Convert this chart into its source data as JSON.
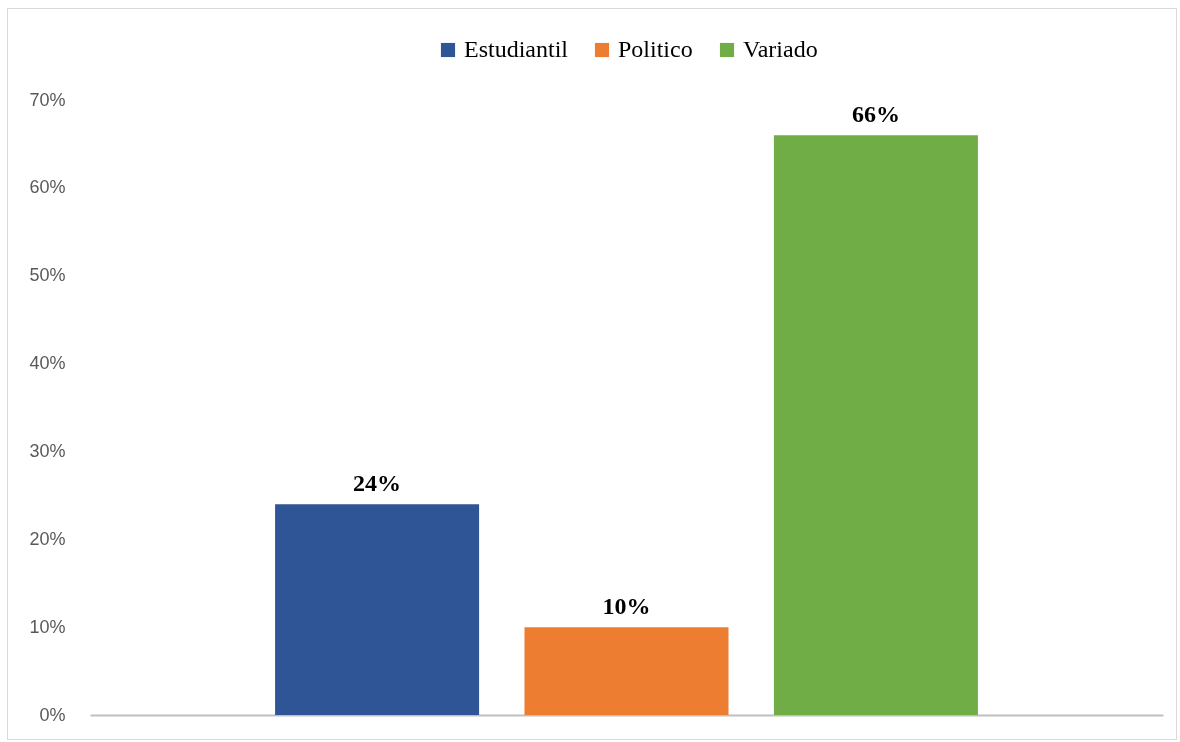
{
  "chart_data": {
    "type": "bar",
    "categories": [
      null
    ],
    "series": [
      {
        "name": "Estudiantil",
        "color": "#2f5597",
        "values": [
          24
        ],
        "value_labels": [
          "24%"
        ]
      },
      {
        "name": "Politico",
        "color": "#ed7d31",
        "values": [
          10
        ],
        "value_labels": [
          "10%"
        ]
      },
      {
        "name": "Variado",
        "color": "#70ad47",
        "values": [
          66
        ],
        "value_labels": [
          "66%"
        ]
      }
    ],
    "ylim": [
      0,
      70
    ],
    "yticks": [
      {
        "value": 0,
        "label": "0%"
      },
      {
        "value": 10,
        "label": "10%"
      },
      {
        "value": 20,
        "label": "20%"
      },
      {
        "value": 30,
        "label": "30%"
      },
      {
        "value": 40,
        "label": "40%"
      },
      {
        "value": 50,
        "label": "50%"
      },
      {
        "value": 60,
        "label": "60%"
      },
      {
        "value": 70,
        "label": "70%"
      }
    ],
    "legend": "top"
  }
}
